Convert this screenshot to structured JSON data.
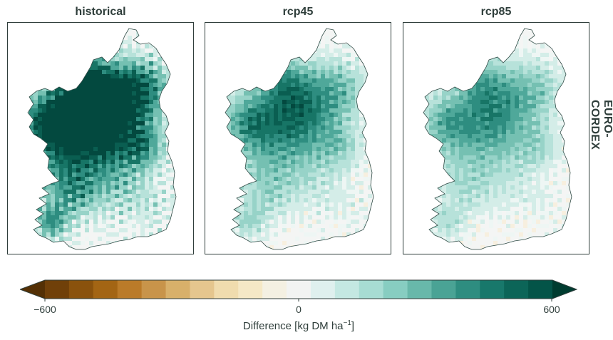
{
  "panels": [
    {
      "title": "historical",
      "intensity": 1.0
    },
    {
      "title": "rcp45",
      "intensity": 0.55
    },
    {
      "title": "rcp85",
      "intensity": 0.45
    }
  ],
  "row_label": "EURO-CORDEX",
  "colorbar": {
    "min": -600,
    "max": 600,
    "ticks": [
      "−600",
      "0",
      "600"
    ],
    "label": "Difference [kg DM ha",
    "label_sup": "−1",
    "label_end": "]",
    "colors": [
      "#704009",
      "#8a520d",
      "#a36514",
      "#ba7b29",
      "#c8944a",
      "#d8b06a",
      "#e5c68e",
      "#f0dcae",
      "#f5e8c6",
      "#f4f0e2",
      "#f2f3f2",
      "#dff0ee",
      "#c4e8e2",
      "#a7dcd3",
      "#87cdc1",
      "#68b8aa",
      "#4aa395",
      "#2e8d80",
      "#18786b",
      "#0c6558",
      "#045448"
    ],
    "under_color": "#543005",
    "over_color": "#003c30"
  }
}
